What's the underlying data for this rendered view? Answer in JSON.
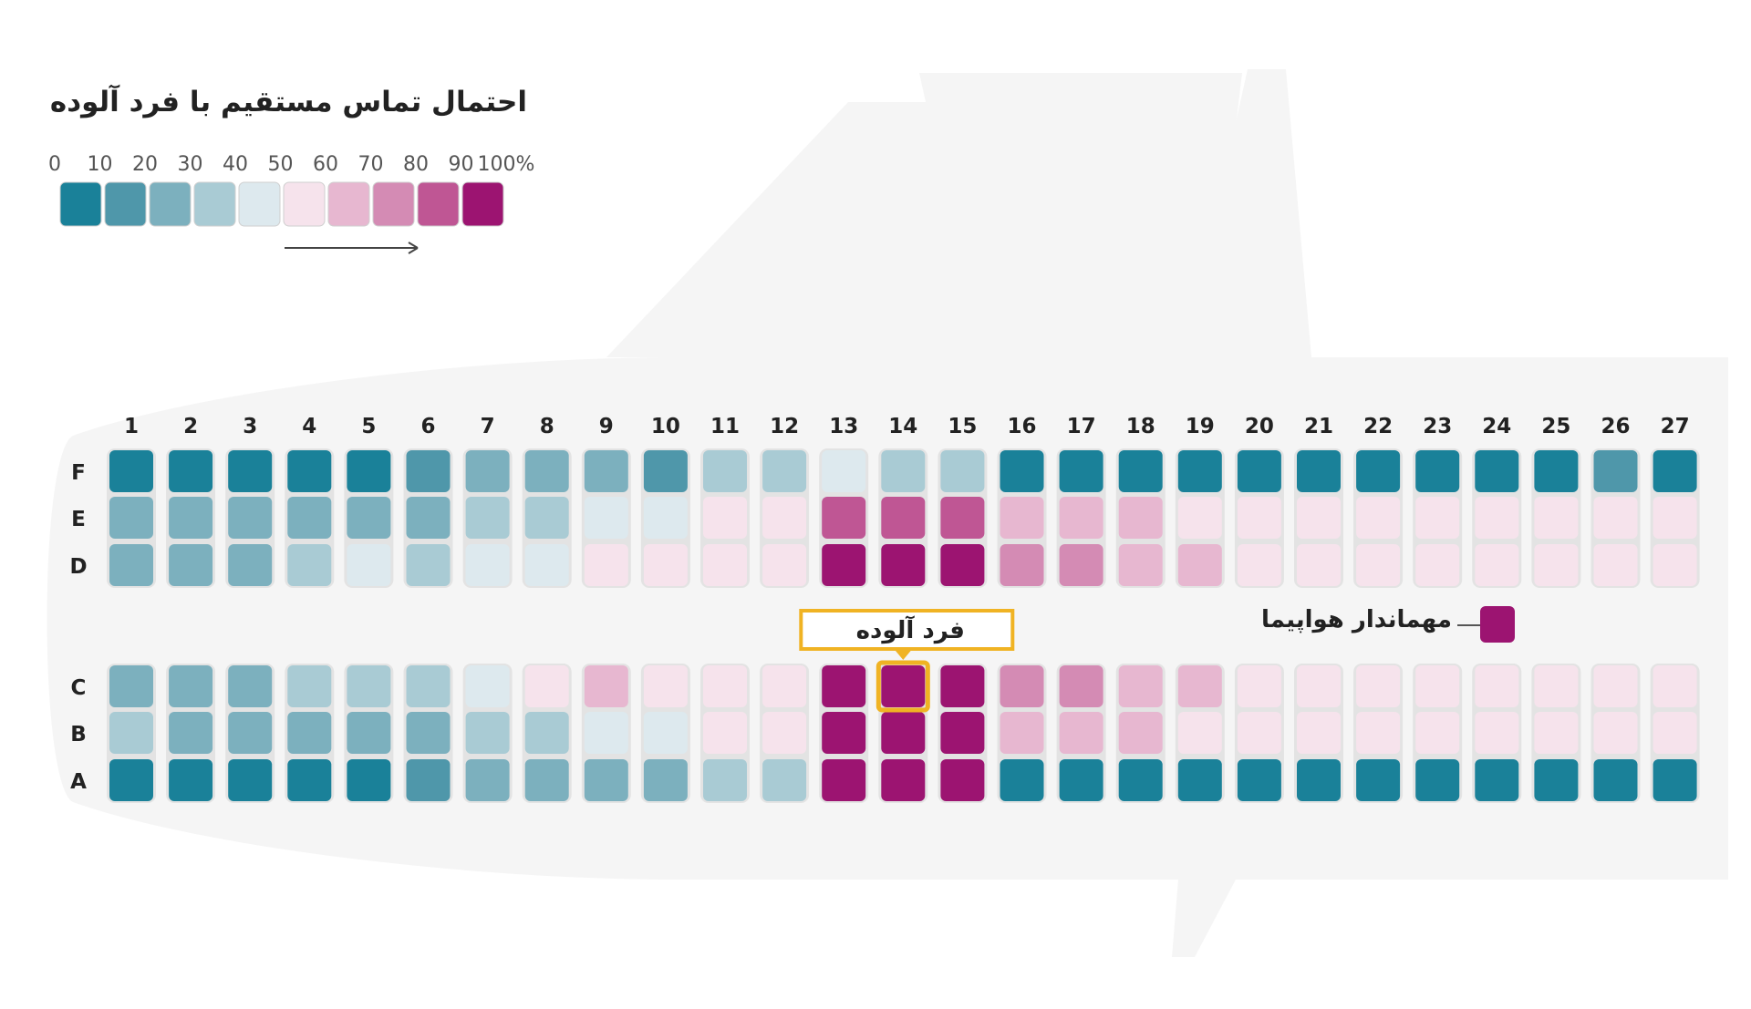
{
  "legend": {
    "title": "احتمال تماس مستقیم با فرد آلوده",
    "tick_labels": [
      "0",
      "10",
      "20",
      "30",
      "40",
      "50",
      "60",
      "70",
      "80",
      "90",
      "100%"
    ],
    "colors": [
      "#1a8199",
      "#4f97aa",
      "#7cb0be",
      "#a9cbd4",
      "#dde9ee",
      "#f6e3ec",
      "#e7b7d0",
      "#d48bb4",
      "#bf5694",
      "#9c1471"
    ]
  },
  "labels": {
    "infected_person": "فرد آلوده",
    "flight_attendant": "مهماندار هواپیما"
  },
  "chart_data": {
    "type": "heatmap",
    "title": "احتمال تماس مستقیم با فرد آلوده",
    "x_label": "",
    "y_label": "",
    "value_unit": "percent probability (color bucket 0–9)",
    "rows": [
      "1",
      "2",
      "3",
      "4",
      "5",
      "6",
      "7",
      "8",
      "9",
      "10",
      "11",
      "12",
      "13",
      "14",
      "15",
      "16",
      "17",
      "18",
      "19",
      "20",
      "21",
      "22",
      "23",
      "24",
      "25",
      "26",
      "27"
    ],
    "seat_letters": [
      "F",
      "E",
      "D",
      "C",
      "B",
      "A"
    ],
    "levels": {
      "F": [
        0,
        0,
        0,
        0,
        0,
        1,
        2,
        2,
        2,
        1,
        3,
        3,
        4,
        3,
        3,
        0,
        0,
        0,
        0,
        0,
        0,
        0,
        0,
        0,
        0,
        1,
        0
      ],
      "E": [
        2,
        2,
        2,
        2,
        2,
        2,
        3,
        3,
        4,
        4,
        5,
        5,
        8,
        8,
        8,
        6,
        6,
        6,
        5,
        5,
        5,
        5,
        5,
        5,
        5,
        5,
        5
      ],
      "D": [
        2,
        2,
        2,
        3,
        4,
        3,
        4,
        4,
        5,
        5,
        5,
        5,
        9,
        9,
        9,
        7,
        7,
        6,
        6,
        5,
        5,
        5,
        5,
        5,
        5,
        5,
        5
      ],
      "C": [
        2,
        2,
        2,
        3,
        3,
        3,
        4,
        5,
        6,
        5,
        5,
        5,
        9,
        9,
        9,
        7,
        7,
        6,
        6,
        5,
        5,
        5,
        5,
        5,
        5,
        5,
        5
      ],
      "B": [
        3,
        2,
        2,
        2,
        2,
        2,
        3,
        3,
        4,
        4,
        5,
        5,
        9,
        9,
        9,
        6,
        6,
        6,
        5,
        5,
        5,
        5,
        5,
        5,
        5,
        5,
        5
      ],
      "A": [
        0,
        0,
        0,
        0,
        0,
        1,
        2,
        2,
        2,
        2,
        3,
        3,
        9,
        9,
        9,
        0,
        0,
        0,
        0,
        0,
        0,
        0,
        0,
        0,
        0,
        0,
        0
      ]
    },
    "infected_seat": "14C",
    "flight_attendant_level": 9
  }
}
